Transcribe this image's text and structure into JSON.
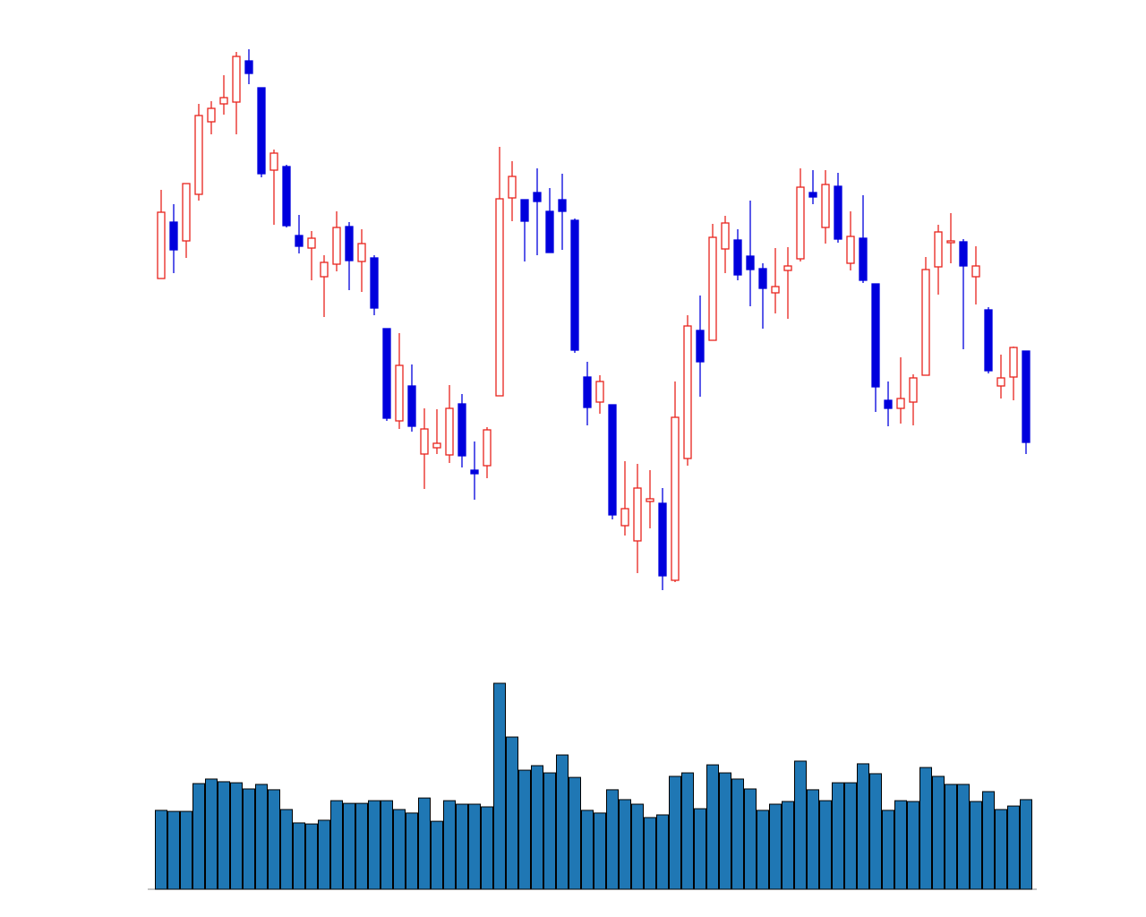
{
  "chart_data": {
    "type": "candlestick",
    "open": [
      389,
      452,
      431,
      483,
      564,
      584,
      586,
      632,
      602,
      510,
      514,
      437,
      423,
      391,
      405,
      447,
      408,
      412,
      333,
      230,
      269,
      193,
      200,
      192,
      249,
      175,
      180,
      258,
      479,
      477,
      485,
      464,
      477,
      454,
      279,
      251,
      248,
      113,
      96,
      140,
      138,
      52,
      188,
      331,
      320,
      422,
      432,
      414,
      400,
      373,
      398,
      411,
      485,
      446,
      492,
      406,
      434,
      383,
      253,
      244,
      251,
      281,
      402,
      429,
      430,
      391,
      354,
      269,
      279,
      308
    ],
    "high": [
      488,
      472,
      495,
      584,
      587,
      616,
      642,
      645,
      602,
      533,
      516,
      460,
      442,
      415,
      464,
      452,
      444,
      415,
      333,
      328,
      293,
      244,
      243,
      270,
      260,
      207,
      223,
      536,
      520,
      477,
      512,
      490,
      506,
      456,
      296,
      281,
      248,
      185,
      182,
      175,
      155,
      274,
      348,
      370,
      450,
      459,
      444,
      476,
      406,
      423,
      424,
      512,
      510,
      510,
      507,
      464,
      482,
      383,
      274,
      301,
      282,
      413,
      449,
      462,
      433,
      425,
      357,
      304,
      313,
      308
    ],
    "low": [
      389,
      395,
      412,
      476,
      550,
      572,
      550,
      606,
      502,
      449,
      446,
      417,
      387,
      346,
      397,
      376,
      374,
      348,
      230,
      221,
      218,
      154,
      193,
      183,
      178,
      142,
      166,
      258,
      453,
      408,
      415,
      418,
      421,
      306,
      225,
      238,
      120,
      102,
      60,
      110,
      41,
      50,
      180,
      257,
      320,
      395,
      387,
      358,
      333,
      350,
      344,
      408,
      472,
      428,
      429,
      398,
      384,
      240,
      224,
      227,
      225,
      281,
      371,
      406,
      310,
      360,
      283,
      255,
      253,
      193
    ],
    "close": [
      463,
      421,
      495,
      571,
      579,
      591,
      637,
      618,
      506,
      529,
      448,
      425,
      434,
      407,
      446,
      409,
      428,
      356,
      233,
      292,
      224,
      221,
      205,
      244,
      191,
      171,
      220,
      478,
      503,
      453,
      475,
      418,
      464,
      309,
      245,
      274,
      125,
      132,
      155,
      143,
      57,
      234,
      336,
      296,
      435,
      451,
      393,
      399,
      378,
      380,
      403,
      491,
      480,
      494,
      433,
      436,
      387,
      268,
      244,
      255,
      278,
      399,
      441,
      431,
      403,
      403,
      286,
      278,
      312,
      206
    ],
    "volume": [
      38.3,
      37.8,
      37.8,
      51.3,
      53.5,
      52.2,
      51.7,
      48.7,
      50.9,
      48.3,
      38.7,
      32.2,
      31.7,
      33.5,
      43.0,
      41.7,
      41.7,
      43.0,
      43.0,
      38.7,
      37.0,
      44.3,
      33.0,
      43.0,
      41.3,
      41.3,
      40.0,
      100,
      73.9,
      57.8,
      60.0,
      56.5,
      65.2,
      54.3,
      38.3,
      37.0,
      48.3,
      43.5,
      41.3,
      34.8,
      36.1,
      54.8,
      56.5,
      39.1,
      60.4,
      56.5,
      53.5,
      48.7,
      38.3,
      41.3,
      42.6,
      62.2,
      48.3,
      43.0,
      51.7,
      51.7,
      60.9,
      56.1,
      38.3,
      43.0,
      42.6,
      59.1,
      54.8,
      50.9,
      50.9,
      42.6,
      47.4,
      38.7,
      40.4,
      43.5
    ],
    "up_color": "#e8241c",
    "down_color": "#0000dd",
    "volume_color": "#1f77b4",
    "ylim": [
      0,
      700
    ],
    "volume_ylim": [
      0,
      100
    ]
  }
}
